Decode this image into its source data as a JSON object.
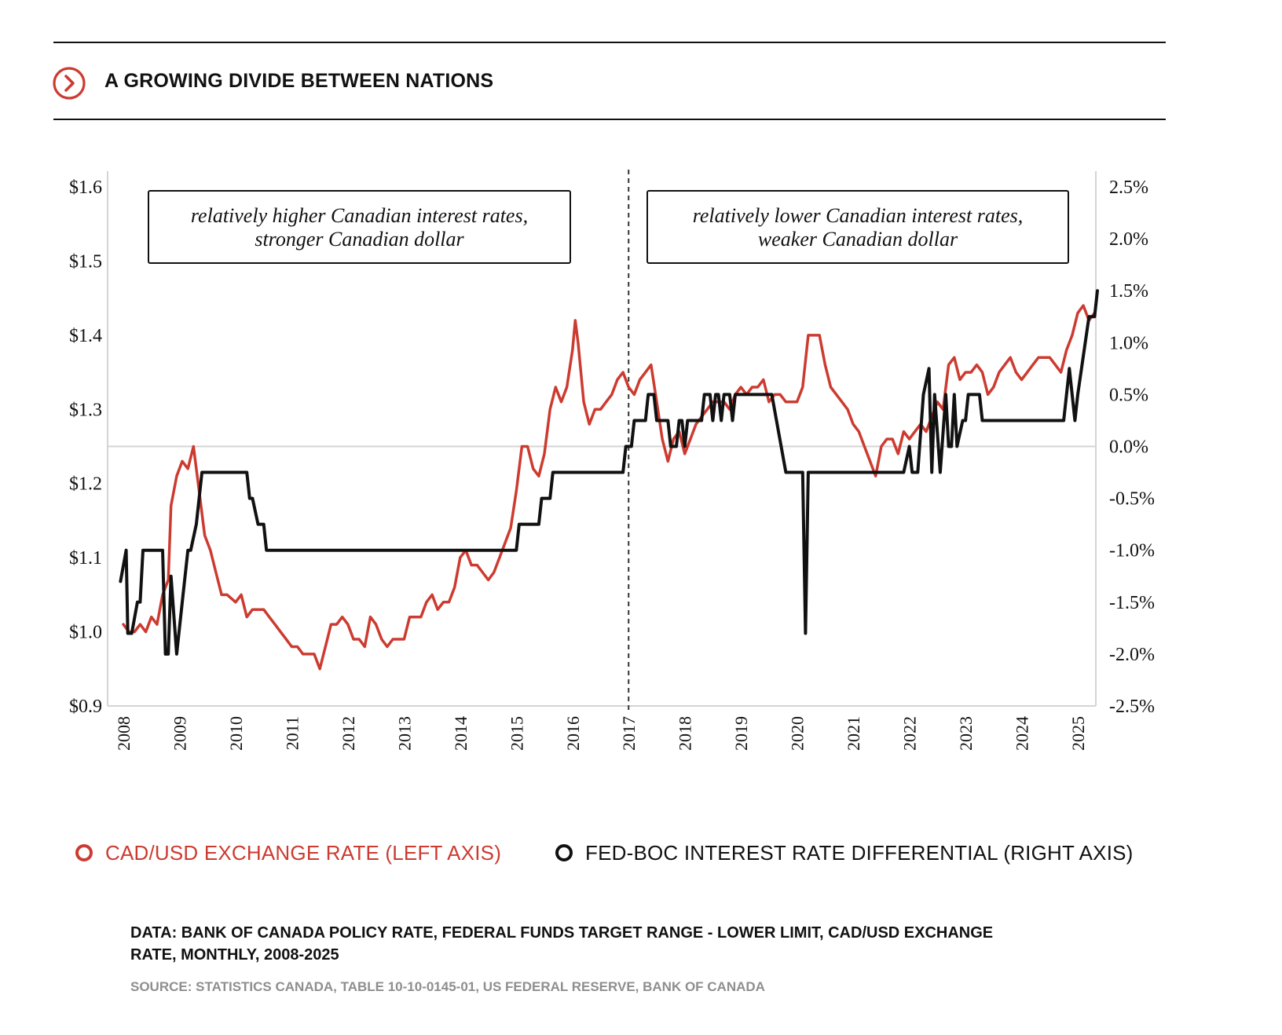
{
  "header": {
    "title": "A GROWING DIVIDE BETWEEN NATIONS",
    "icon": "chevron-right-circle-icon",
    "accent_color": "#cc3b30"
  },
  "legend": {
    "left_series": "CAD/USD EXCHANGE RATE (LEFT AXIS)",
    "right_series": "FED-BOC INTEREST RATE DIFFERENTIAL (RIGHT AXIS)"
  },
  "footer": {
    "data_note": "DATA: BANK OF CANADA POLICY RATE, FEDERAL FUNDS TARGET RANGE - LOWER LIMIT, CAD/USD EXCHANGE RATE, MONTHLY, 2008-2025",
    "source_note": "SOURCE: STATISTICS CANADA, TABLE 10-10-0145-01, US FEDERAL RESERVE, BANK OF CANADA"
  },
  "chart_data": {
    "type": "line",
    "title": "A GROWING DIVIDE BETWEEN NATIONS",
    "xlabel": "",
    "xlim": [
      2008,
      2025.5
    ],
    "x_ticks": [
      2008,
      2009,
      2010,
      2011,
      2012,
      2013,
      2014,
      2015,
      2016,
      2017,
      2018,
      2019,
      2020,
      2021,
      2022,
      2023,
      2024,
      2025
    ],
    "x_tick_labels": [
      "2008",
      "2009",
      "2010",
      "2011",
      "2012",
      "2013",
      "2014",
      "2015",
      "2016",
      "2017",
      "2018",
      "2019",
      "2020",
      "2021",
      "2022",
      "2023",
      "2024",
      "2025"
    ],
    "left_axis": {
      "ylim": [
        0.9,
        1.6
      ],
      "ticks": [
        0.9,
        1.0,
        1.1,
        1.2,
        1.3,
        1.4,
        1.5,
        1.6
      ],
      "tick_labels": [
        "$0.9",
        "$1.0",
        "$1.1",
        "$1.2",
        "$1.3",
        "$1.4",
        "$1.5",
        "$1.6"
      ]
    },
    "right_axis": {
      "ylim": [
        -2.5,
        2.5
      ],
      "ticks": [
        2.5,
        2.0,
        1.5,
        1.0,
        0.5,
        0.0,
        -0.5,
        -1.0,
        -1.5,
        -2.0,
        -2.5
      ],
      "tick_labels": [
        "2.5%",
        "2.0%",
        "1.5%",
        "1.0%",
        "0.5%",
        "0.0%",
        "-0.5%",
        "-1.0%",
        "-1.5%",
        "-2.0%",
        "-2.5%"
      ]
    },
    "reference_line": {
      "axis": "right",
      "value": 0.0
    },
    "divider": {
      "x": 2017
    },
    "annotations": [
      {
        "line1": "relatively higher Canadian interest rates,",
        "line2": "stronger Canadian dollar"
      },
      {
        "line1": "relatively lower Canadian interest rates,",
        "line2": "weaker Canadian dollar"
      }
    ],
    "series": [
      {
        "name": "CAD/USD EXCHANGE RATE (LEFT AXIS)",
        "axis": "left",
        "color": "#cc3b30",
        "points": [
          [
            2008.0,
            1.01
          ],
          [
            2008.1,
            1.0
          ],
          [
            2008.2,
            1.0
          ],
          [
            2008.3,
            1.01
          ],
          [
            2008.4,
            1.0
          ],
          [
            2008.5,
            1.02
          ],
          [
            2008.6,
            1.01
          ],
          [
            2008.7,
            1.05
          ],
          [
            2008.8,
            1.07
          ],
          [
            2008.85,
            1.17
          ],
          [
            2008.95,
            1.21
          ],
          [
            2009.05,
            1.23
          ],
          [
            2009.15,
            1.22
          ],
          [
            2009.25,
            1.25
          ],
          [
            2009.35,
            1.19
          ],
          [
            2009.45,
            1.13
          ],
          [
            2009.55,
            1.11
          ],
          [
            2009.65,
            1.08
          ],
          [
            2009.75,
            1.05
          ],
          [
            2009.85,
            1.05
          ],
          [
            2010.0,
            1.04
          ],
          [
            2010.1,
            1.05
          ],
          [
            2010.2,
            1.02
          ],
          [
            2010.3,
            1.03
          ],
          [
            2010.4,
            1.03
          ],
          [
            2010.5,
            1.03
          ],
          [
            2010.6,
            1.02
          ],
          [
            2010.7,
            1.01
          ],
          [
            2010.8,
            1.0
          ],
          [
            2010.9,
            0.99
          ],
          [
            2011.0,
            0.98
          ],
          [
            2011.1,
            0.98
          ],
          [
            2011.2,
            0.97
          ],
          [
            2011.3,
            0.97
          ],
          [
            2011.4,
            0.97
          ],
          [
            2011.5,
            0.95
          ],
          [
            2011.6,
            0.98
          ],
          [
            2011.7,
            1.01
          ],
          [
            2011.8,
            1.01
          ],
          [
            2011.9,
            1.02
          ],
          [
            2012.0,
            1.01
          ],
          [
            2012.1,
            0.99
          ],
          [
            2012.2,
            0.99
          ],
          [
            2012.3,
            0.98
          ],
          [
            2012.4,
            1.02
          ],
          [
            2012.5,
            1.01
          ],
          [
            2012.6,
            0.99
          ],
          [
            2012.7,
            0.98
          ],
          [
            2012.8,
            0.99
          ],
          [
            2012.9,
            0.99
          ],
          [
            2013.0,
            0.99
          ],
          [
            2013.1,
            1.02
          ],
          [
            2013.2,
            1.02
          ],
          [
            2013.3,
            1.02
          ],
          [
            2013.4,
            1.04
          ],
          [
            2013.5,
            1.05
          ],
          [
            2013.6,
            1.03
          ],
          [
            2013.7,
            1.04
          ],
          [
            2013.8,
            1.04
          ],
          [
            2013.9,
            1.06
          ],
          [
            2014.0,
            1.1
          ],
          [
            2014.1,
            1.11
          ],
          [
            2014.2,
            1.09
          ],
          [
            2014.3,
            1.09
          ],
          [
            2014.4,
            1.08
          ],
          [
            2014.5,
            1.07
          ],
          [
            2014.6,
            1.08
          ],
          [
            2014.7,
            1.1
          ],
          [
            2014.8,
            1.12
          ],
          [
            2014.9,
            1.14
          ],
          [
            2015.0,
            1.19
          ],
          [
            2015.1,
            1.25
          ],
          [
            2015.2,
            1.25
          ],
          [
            2015.3,
            1.22
          ],
          [
            2015.4,
            1.21
          ],
          [
            2015.5,
            1.24
          ],
          [
            2015.6,
            1.3
          ],
          [
            2015.7,
            1.33
          ],
          [
            2015.8,
            1.31
          ],
          [
            2015.9,
            1.33
          ],
          [
            2016.0,
            1.38
          ],
          [
            2016.05,
            1.42
          ],
          [
            2016.1,
            1.39
          ],
          [
            2016.2,
            1.31
          ],
          [
            2016.3,
            1.28
          ],
          [
            2016.4,
            1.3
          ],
          [
            2016.5,
            1.3
          ],
          [
            2016.6,
            1.31
          ],
          [
            2016.7,
            1.32
          ],
          [
            2016.8,
            1.34
          ],
          [
            2016.9,
            1.35
          ],
          [
            2017.0,
            1.33
          ],
          [
            2017.1,
            1.32
          ],
          [
            2017.2,
            1.34
          ],
          [
            2017.3,
            1.35
          ],
          [
            2017.4,
            1.36
          ],
          [
            2017.5,
            1.31
          ],
          [
            2017.6,
            1.26
          ],
          [
            2017.7,
            1.23
          ],
          [
            2017.8,
            1.26
          ],
          [
            2017.9,
            1.27
          ],
          [
            2018.0,
            1.24
          ],
          [
            2018.1,
            1.26
          ],
          [
            2018.2,
            1.28
          ],
          [
            2018.3,
            1.29
          ],
          [
            2018.4,
            1.3
          ],
          [
            2018.5,
            1.31
          ],
          [
            2018.6,
            1.31
          ],
          [
            2018.7,
            1.31
          ],
          [
            2018.8,
            1.3
          ],
          [
            2018.9,
            1.32
          ],
          [
            2019.0,
            1.33
          ],
          [
            2019.1,
            1.32
          ],
          [
            2019.2,
            1.33
          ],
          [
            2019.3,
            1.33
          ],
          [
            2019.4,
            1.34
          ],
          [
            2019.5,
            1.31
          ],
          [
            2019.6,
            1.32
          ],
          [
            2019.7,
            1.32
          ],
          [
            2019.8,
            1.31
          ],
          [
            2019.9,
            1.31
          ],
          [
            2020.0,
            1.31
          ],
          [
            2020.1,
            1.33
          ],
          [
            2020.2,
            1.4
          ],
          [
            2020.3,
            1.4
          ],
          [
            2020.4,
            1.4
          ],
          [
            2020.5,
            1.36
          ],
          [
            2020.6,
            1.33
          ],
          [
            2020.7,
            1.32
          ],
          [
            2020.8,
            1.31
          ],
          [
            2020.9,
            1.3
          ],
          [
            2021.0,
            1.28
          ],
          [
            2021.1,
            1.27
          ],
          [
            2021.2,
            1.25
          ],
          [
            2021.3,
            1.23
          ],
          [
            2021.4,
            1.21
          ],
          [
            2021.5,
            1.25
          ],
          [
            2021.6,
            1.26
          ],
          [
            2021.7,
            1.26
          ],
          [
            2021.8,
            1.24
          ],
          [
            2021.9,
            1.27
          ],
          [
            2022.0,
            1.26
          ],
          [
            2022.1,
            1.27
          ],
          [
            2022.2,
            1.28
          ],
          [
            2022.3,
            1.27
          ],
          [
            2022.4,
            1.29
          ],
          [
            2022.5,
            1.31
          ],
          [
            2022.6,
            1.3
          ],
          [
            2022.7,
            1.36
          ],
          [
            2022.8,
            1.37
          ],
          [
            2022.9,
            1.34
          ],
          [
            2023.0,
            1.35
          ],
          [
            2023.1,
            1.35
          ],
          [
            2023.2,
            1.36
          ],
          [
            2023.3,
            1.35
          ],
          [
            2023.4,
            1.32
          ],
          [
            2023.5,
            1.33
          ],
          [
            2023.6,
            1.35
          ],
          [
            2023.7,
            1.36
          ],
          [
            2023.8,
            1.37
          ],
          [
            2023.9,
            1.35
          ],
          [
            2024.0,
            1.34
          ],
          [
            2024.1,
            1.35
          ],
          [
            2024.2,
            1.36
          ],
          [
            2024.3,
            1.37
          ],
          [
            2024.4,
            1.37
          ],
          [
            2024.5,
            1.37
          ],
          [
            2024.6,
            1.36
          ],
          [
            2024.7,
            1.35
          ],
          [
            2024.8,
            1.38
          ],
          [
            2024.9,
            1.4
          ],
          [
            2025.0,
            1.43
          ],
          [
            2025.1,
            1.44
          ],
          [
            2025.2,
            1.42
          ],
          [
            2025.3,
            1.43
          ]
        ]
      },
      {
        "name": "FED-BOC INTEREST RATE DIFFERENTIAL (RIGHT AXIS)",
        "axis": "right",
        "color": "#111111",
        "points": [
          [
            2007.95,
            -1.3
          ],
          [
            2008.05,
            -1.0
          ],
          [
            2008.08,
            -1.8
          ],
          [
            2008.15,
            -1.8
          ],
          [
            2008.25,
            -1.5
          ],
          [
            2008.3,
            -1.5
          ],
          [
            2008.35,
            -1.0
          ],
          [
            2008.6,
            -1.0
          ],
          [
            2008.7,
            -1.0
          ],
          [
            2008.75,
            -2.0
          ],
          [
            2008.8,
            -2.0
          ],
          [
            2008.85,
            -1.25
          ],
          [
            2008.95,
            -2.0
          ],
          [
            2009.05,
            -1.5
          ],
          [
            2009.15,
            -1.0
          ],
          [
            2009.2,
            -1.0
          ],
          [
            2009.3,
            -0.75
          ],
          [
            2009.4,
            -0.25
          ],
          [
            2009.5,
            -0.25
          ],
          [
            2010.0,
            -0.25
          ],
          [
            2010.2,
            -0.25
          ],
          [
            2010.25,
            -0.5
          ],
          [
            2010.3,
            -0.5
          ],
          [
            2010.4,
            -0.75
          ],
          [
            2010.5,
            -0.75
          ],
          [
            2010.55,
            -1.0
          ],
          [
            2015.0,
            -1.0
          ],
          [
            2015.05,
            -0.75
          ],
          [
            2015.4,
            -0.75
          ],
          [
            2015.45,
            -0.5
          ],
          [
            2015.6,
            -0.5
          ],
          [
            2015.65,
            -0.25
          ],
          [
            2016.9,
            -0.25
          ],
          [
            2016.95,
            0.0
          ],
          [
            2017.05,
            0.0
          ],
          [
            2017.1,
            0.25
          ],
          [
            2017.3,
            0.25
          ],
          [
            2017.35,
            0.5
          ],
          [
            2017.45,
            0.5
          ],
          [
            2017.5,
            0.25
          ],
          [
            2017.7,
            0.25
          ],
          [
            2017.75,
            0.0
          ],
          [
            2017.85,
            0.0
          ],
          [
            2017.9,
            0.25
          ],
          [
            2017.95,
            0.25
          ],
          [
            2018.0,
            0.0
          ],
          [
            2018.05,
            0.25
          ],
          [
            2018.2,
            0.25
          ],
          [
            2018.3,
            0.25
          ],
          [
            2018.35,
            0.5
          ],
          [
            2018.45,
            0.5
          ],
          [
            2018.5,
            0.25
          ],
          [
            2018.55,
            0.5
          ],
          [
            2018.6,
            0.5
          ],
          [
            2018.65,
            0.25
          ],
          [
            2018.7,
            0.5
          ],
          [
            2018.8,
            0.5
          ],
          [
            2018.85,
            0.25
          ],
          [
            2018.9,
            0.5
          ],
          [
            2019.55,
            0.5
          ],
          [
            2019.8,
            -0.25
          ],
          [
            2019.9,
            -0.25
          ],
          [
            2020.1,
            -0.25
          ],
          [
            2020.15,
            -1.8
          ],
          [
            2020.2,
            -0.25
          ],
          [
            2021.9,
            -0.25
          ],
          [
            2022.0,
            0.0
          ],
          [
            2022.05,
            -0.25
          ],
          [
            2022.15,
            -0.25
          ],
          [
            2022.25,
            0.5
          ],
          [
            2022.35,
            0.75
          ],
          [
            2022.4,
            -0.25
          ],
          [
            2022.45,
            0.5
          ],
          [
            2022.55,
            -0.25
          ],
          [
            2022.65,
            0.5
          ],
          [
            2022.7,
            0.0
          ],
          [
            2022.75,
            0.0
          ],
          [
            2022.8,
            0.5
          ],
          [
            2022.85,
            0.0
          ],
          [
            2022.95,
            0.25
          ],
          [
            2023.0,
            0.25
          ],
          [
            2023.05,
            0.5
          ],
          [
            2023.25,
            0.5
          ],
          [
            2023.3,
            0.25
          ],
          [
            2024.75,
            0.25
          ],
          [
            2024.85,
            0.75
          ],
          [
            2024.95,
            0.25
          ],
          [
            2025.0,
            0.5
          ],
          [
            2025.2,
            1.25
          ],
          [
            2025.3,
            1.25
          ],
          [
            2025.35,
            1.5
          ]
        ]
      }
    ]
  }
}
